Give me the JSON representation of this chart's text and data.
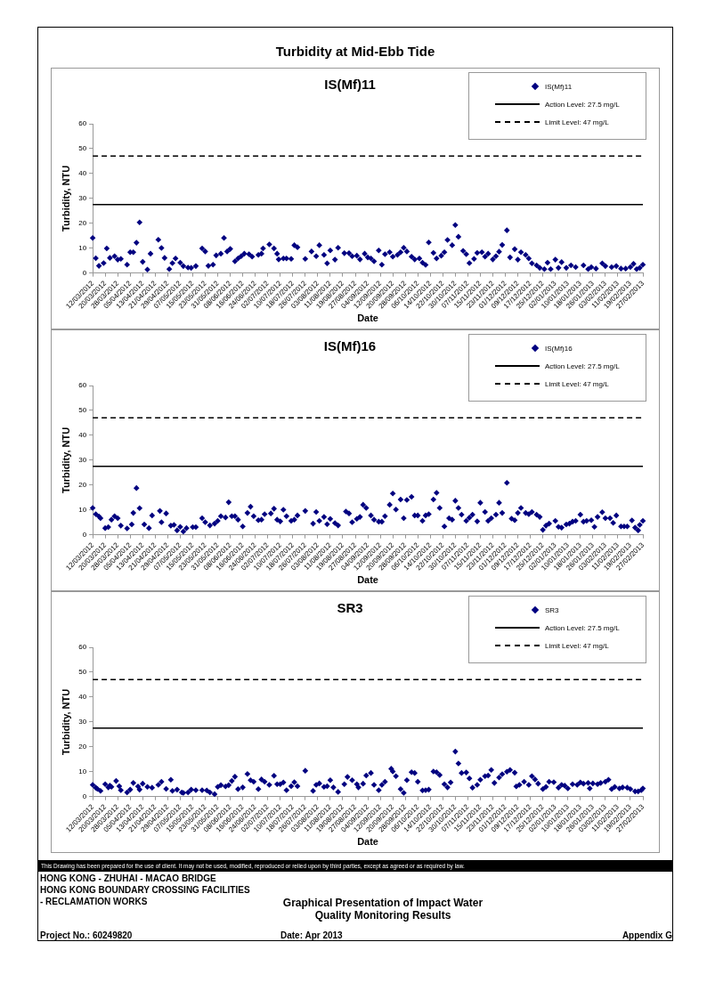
{
  "chart_data": [
    {
      "type": "other",
      "title": "Turbidity at Mid-Ebb Tide"
    },
    {
      "type": "scatter",
      "title": "IS(Mf)11",
      "xlabel": "Date",
      "ylabel": "Turbidity, NTU",
      "marker": "diamond",
      "legend": "top right",
      "xlim": [
        "2012-03-12",
        "2013-02-27"
      ],
      "ylim": [
        0,
        60
      ],
      "yticks": [
        0,
        10,
        20,
        30,
        40,
        50,
        60
      ],
      "xticks": [
        {
          "value": "2012-03-12",
          "label": "12/03/2012"
        },
        {
          "value": "2012-03-20",
          "label": "20/03/2012"
        },
        {
          "value": "2012-03-28",
          "label": "28/03/2012"
        },
        {
          "value": "2012-04-05",
          "label": "05/04/2012"
        },
        {
          "value": "2012-04-13",
          "label": "13/04/2012"
        },
        {
          "value": "2012-04-21",
          "label": "21/04/2012"
        },
        {
          "value": "2012-04-29",
          "label": "29/04/2012"
        },
        {
          "value": "2012-05-07",
          "label": "07/05/2012"
        },
        {
          "value": "2012-05-15",
          "label": "15/05/2012"
        },
        {
          "value": "2012-05-23",
          "label": "23/05/2012"
        },
        {
          "value": "2012-05-31",
          "label": "31/05/2012"
        },
        {
          "value": "2012-06-08",
          "label": "08/06/2012"
        },
        {
          "value": "2012-06-16",
          "label": "16/06/2012"
        },
        {
          "value": "2012-06-24",
          "label": "24/06/2012"
        },
        {
          "value": "2012-07-02",
          "label": "02/07/2012"
        },
        {
          "value": "2012-07-10",
          "label": "10/07/2012"
        },
        {
          "value": "2012-07-18",
          "label": "18/07/2012"
        },
        {
          "value": "2012-07-26",
          "label": "26/07/2012"
        },
        {
          "value": "2012-08-03",
          "label": "03/08/2012"
        },
        {
          "value": "2012-08-11",
          "label": "11/08/2012"
        },
        {
          "value": "2012-08-19",
          "label": "19/08/2012"
        },
        {
          "value": "2012-08-27",
          "label": "27/08/2012"
        },
        {
          "value": "2012-09-04",
          "label": "04/09/2012"
        },
        {
          "value": "2012-09-12",
          "label": "12/09/2012"
        },
        {
          "value": "2012-09-20",
          "label": "20/09/2012"
        },
        {
          "value": "2012-09-28",
          "label": "28/09/2012"
        },
        {
          "value": "2012-10-06",
          "label": "06/10/2012"
        },
        {
          "value": "2012-10-14",
          "label": "14/10/2012"
        },
        {
          "value": "2012-10-22",
          "label": "22/10/2012"
        },
        {
          "value": "2012-10-30",
          "label": "30/10/2012"
        },
        {
          "value": "2012-11-07",
          "label": "07/11/2012"
        },
        {
          "value": "2012-11-15",
          "label": "15/11/2012"
        },
        {
          "value": "2012-11-23",
          "label": "23/11/2012"
        },
        {
          "value": "2012-12-01",
          "label": "01/12/2012"
        },
        {
          "value": "2012-12-09",
          "label": "09/12/2012"
        },
        {
          "value": "2012-12-17",
          "label": "17/12/2012"
        },
        {
          "value": "2012-12-25",
          "label": "25/12/2012"
        },
        {
          "value": "2013-01-02",
          "label": "02/01/2013"
        },
        {
          "value": "2013-01-10",
          "label": "10/01/2013"
        },
        {
          "value": "2013-01-18",
          "label": "18/01/2013"
        },
        {
          "value": "2013-01-26",
          "label": "26/01/2013"
        },
        {
          "value": "2013-02-03",
          "label": "03/02/2013"
        },
        {
          "value": "2013-02-11",
          "label": "11/02/2013"
        },
        {
          "value": "2013-02-19",
          "label": "19/02/2013"
        },
        {
          "value": "2013-02-27",
          "label": "27/02/2013"
        }
      ],
      "ref_lines": [
        {
          "axis": "y",
          "value": 27.5,
          "label": "Action Level: 27.5 mg/L",
          "color": "#000000",
          "line_style": "solid"
        },
        {
          "axis": "y",
          "value": 47,
          "label": "Limit Level: 47 mg/L",
          "color": "#000000",
          "line_style": "dashed"
        }
      ],
      "series": [
        {
          "name": "IS(Mf)11",
          "color": "#000080",
          "x": [
            "2012-03-12",
            "2012-03-14",
            "2012-03-16",
            "2012-03-19",
            "2012-03-21",
            "2012-03-23",
            "2012-03-26",
            "2012-03-28",
            "2012-03-30",
            "2012-04-03",
            "2012-04-05",
            "2012-04-07",
            "2012-04-09",
            "2012-04-11",
            "2012-04-13",
            "2012-04-16",
            "2012-04-18",
            "2012-04-23",
            "2012-04-25",
            "2012-04-27",
            "2012-04-30",
            "2012-05-02",
            "2012-05-04",
            "2012-05-07",
            "2012-05-09",
            "2012-05-12",
            "2012-05-14",
            "2012-05-17",
            "2012-05-21",
            "2012-05-23",
            "2012-05-25",
            "2012-05-28",
            "2012-05-30",
            "2012-06-02",
            "2012-06-04",
            "2012-06-06",
            "2012-06-08",
            "2012-06-11",
            "2012-06-13",
            "2012-06-15",
            "2012-06-17",
            "2012-06-20",
            "2012-06-22",
            "2012-06-26",
            "2012-06-28",
            "2012-06-29",
            "2012-07-03",
            "2012-07-06",
            "2012-07-08",
            "2012-07-09",
            "2012-07-12",
            "2012-07-14",
            "2012-07-17",
            "2012-07-19",
            "2012-07-21",
            "2012-07-26",
            "2012-07-30",
            "2012-08-02",
            "2012-08-04",
            "2012-08-07",
            "2012-08-09",
            "2012-08-11",
            "2012-08-14",
            "2012-08-16",
            "2012-08-20",
            "2012-08-23",
            "2012-08-25",
            "2012-08-28",
            "2012-08-30",
            "2012-09-02",
            "2012-09-04",
            "2012-09-06",
            "2012-09-08",
            "2012-09-11",
            "2012-09-13",
            "2012-09-15",
            "2012-09-18",
            "2012-09-20",
            "2012-09-23",
            "2012-09-25",
            "2012-09-27",
            "2012-09-29",
            "2012-10-02",
            "2012-10-04",
            "2012-10-07",
            "2012-10-09",
            "2012-10-11",
            "2012-10-13",
            "2012-10-16",
            "2012-10-18",
            "2012-10-21",
            "2012-10-23",
            "2012-10-25",
            "2012-10-28",
            "2012-10-30",
            "2012-11-01",
            "2012-11-04",
            "2012-11-06",
            "2012-11-08",
            "2012-11-11",
            "2012-11-13",
            "2012-11-16",
            "2012-11-18",
            "2012-11-20",
            "2012-11-23",
            "2012-11-25",
            "2012-11-27",
            "2012-11-29",
            "2012-12-02",
            "2012-12-04",
            "2012-12-07",
            "2012-12-09",
            "2012-12-11",
            "2012-12-14",
            "2012-12-16",
            "2012-12-18",
            "2012-12-21",
            "2012-12-23",
            "2012-12-26",
            "2012-12-28",
            "2012-12-30",
            "2013-01-02",
            "2013-01-04",
            "2013-01-06",
            "2013-01-09",
            "2013-01-12",
            "2013-01-15",
            "2013-01-20",
            "2013-01-23",
            "2013-01-25",
            "2013-01-28",
            "2013-02-01",
            "2013-02-03",
            "2013-02-07",
            "2013-02-10",
            "2013-02-13",
            "2013-02-16",
            "2013-02-19",
            "2013-02-21",
            "2013-02-23",
            "2013-02-25",
            "2013-02-27"
          ],
          "values": [
            14.1,
            6.0,
            2.9,
            4.0,
            9.9,
            6.1,
            6.8,
            5.4,
            5.7,
            3.4,
            8.4,
            8.4,
            12.2,
            20.4,
            4.5,
            1.4,
            7.8,
            13.4,
            10.1,
            6.1,
            1.6,
            4.0,
            5.9,
            4.2,
            2.8,
            2.2,
            2.1,
            2.8,
            9.9,
            8.7,
            2.9,
            3.4,
            7.1,
            7.8,
            14.1,
            8.7,
            9.7,
            4.7,
            5.9,
            6.8,
            7.8,
            7.6,
            6.6,
            7.3,
            7.8,
            9.9,
            11.5,
            9.9,
            7.8,
            5.5,
            5.9,
            5.9,
            5.7,
            11.2,
            10.4,
            5.7,
            8.7,
            6.8,
            11.2,
            7.3,
            3.9,
            9.1,
            5.4,
            10.2,
            8.0,
            8.0,
            6.8,
            7.0,
            5.5,
            7.8,
            6.3,
            5.9,
            4.7,
            9.1,
            3.4,
            7.6,
            8.4,
            6.6,
            7.3,
            8.4,
            10.2,
            8.7,
            6.6,
            5.5,
            5.9,
            4.2,
            3.3,
            12.3,
            8.1,
            5.9,
            7.0,
            8.4,
            13.3,
            11.2,
            19.3,
            14.6,
            8.9,
            7.6,
            4.0,
            5.7,
            8.1,
            8.4,
            6.6,
            7.8,
            5.5,
            6.8,
            8.6,
            11.3,
            17.2,
            6.3,
            9.6,
            5.4,
            8.4,
            7.3,
            5.9,
            3.9,
            3.1,
            2.1,
            1.6,
            4.2,
            1.6,
            5.4,
            2.1,
            4.4,
            2.1,
            3.1,
            2.4,
            3.1,
            1.6,
            2.4,
            1.8,
            3.9,
            2.8,
            2.4,
            2.8,
            1.8,
            1.8,
            2.4,
            3.7,
            1.6,
            2.1,
            3.4
          ]
        }
      ]
    },
    {
      "type": "scatter",
      "title": "IS(Mf)16",
      "xlabel": "Date",
      "ylabel": "Turbidity, NTU",
      "marker": "diamond",
      "legend": "top right",
      "xlim": [
        "2012-03-12",
        "2013-02-27"
      ],
      "ylim": [
        0,
        60
      ],
      "yticks": [
        0,
        10,
        20,
        30,
        40,
        50,
        60
      ],
      "xticks": [
        {
          "value": "2012-03-12",
          "label": "12/03/2012"
        },
        {
          "value": "2012-03-20",
          "label": "20/03/2012"
        },
        {
          "value": "2012-03-28",
          "label": "28/03/2012"
        },
        {
          "value": "2012-04-05",
          "label": "05/04/2012"
        },
        {
          "value": "2012-04-13",
          "label": "13/04/2012"
        },
        {
          "value": "2012-04-21",
          "label": "21/04/2012"
        },
        {
          "value": "2012-04-29",
          "label": "29/04/2012"
        },
        {
          "value": "2012-05-07",
          "label": "07/05/2012"
        },
        {
          "value": "2012-05-15",
          "label": "15/05/2012"
        },
        {
          "value": "2012-05-23",
          "label": "23/05/2012"
        },
        {
          "value": "2012-05-31",
          "label": "31/05/2012"
        },
        {
          "value": "2012-06-08",
          "label": "08/06/2012"
        },
        {
          "value": "2012-06-16",
          "label": "16/06/2012"
        },
        {
          "value": "2012-06-24",
          "label": "24/06/2012"
        },
        {
          "value": "2012-07-02",
          "label": "02/07/2012"
        },
        {
          "value": "2012-07-10",
          "label": "10/07/2012"
        },
        {
          "value": "2012-07-18",
          "label": "18/07/2012"
        },
        {
          "value": "2012-07-26",
          "label": "26/07/2012"
        },
        {
          "value": "2012-08-03",
          "label": "03/08/2012"
        },
        {
          "value": "2012-08-11",
          "label": "11/08/2012"
        },
        {
          "value": "2012-08-19",
          "label": "19/08/2012"
        },
        {
          "value": "2012-08-27",
          "label": "27/08/2012"
        },
        {
          "value": "2012-09-04",
          "label": "04/09/2012"
        },
        {
          "value": "2012-09-12",
          "label": "12/09/2012"
        },
        {
          "value": "2012-09-20",
          "label": "20/09/2012"
        },
        {
          "value": "2012-09-28",
          "label": "28/09/2012"
        },
        {
          "value": "2012-10-06",
          "label": "06/10/2012"
        },
        {
          "value": "2012-10-14",
          "label": "14/10/2012"
        },
        {
          "value": "2012-10-22",
          "label": "22/10/2012"
        },
        {
          "value": "2012-10-30",
          "label": "30/10/2012"
        },
        {
          "value": "2012-11-07",
          "label": "07/11/2012"
        },
        {
          "value": "2012-11-15",
          "label": "15/11/2012"
        },
        {
          "value": "2012-11-23",
          "label": "23/11/2012"
        },
        {
          "value": "2012-12-01",
          "label": "01/12/2012"
        },
        {
          "value": "2012-12-09",
          "label": "09/12/2012"
        },
        {
          "value": "2012-12-17",
          "label": "17/12/2012"
        },
        {
          "value": "2012-12-25",
          "label": "25/12/2012"
        },
        {
          "value": "2013-01-02",
          "label": "02/01/2013"
        },
        {
          "value": "2013-01-10",
          "label": "10/01/2013"
        },
        {
          "value": "2013-01-18",
          "label": "18/01/2013"
        },
        {
          "value": "2013-01-26",
          "label": "26/01/2013"
        },
        {
          "value": "2013-02-03",
          "label": "03/02/2013"
        },
        {
          "value": "2013-02-11",
          "label": "11/02/2013"
        },
        {
          "value": "2013-02-19",
          "label": "19/02/2013"
        },
        {
          "value": "2013-02-27",
          "label": "27/02/2013"
        }
      ],
      "ref_lines": [
        {
          "axis": "y",
          "value": 27.5,
          "label": "Action Level: 27.5 mg/L",
          "color": "#000000",
          "line_style": "solid"
        },
        {
          "axis": "y",
          "value": 47,
          "label": "Limit Level: 47 mg/L",
          "color": "#000000",
          "line_style": "dashed"
        }
      ],
      "series": [
        {
          "name": "IS(Mf)16",
          "color": "#000080",
          "x": [
            "2012-03-12",
            "2012-03-14",
            "2012-03-16",
            "2012-03-17",
            "2012-03-20",
            "2012-03-22",
            "2012-03-24",
            "2012-03-26",
            "2012-03-28",
            "2012-03-30",
            "2012-04-03",
            "2012-04-06",
            "2012-04-07",
            "2012-04-09",
            "2012-04-11",
            "2012-04-14",
            "2012-04-17",
            "2012-04-19",
            "2012-04-24",
            "2012-04-25",
            "2012-04-28",
            "2012-05-01",
            "2012-05-03",
            "2012-05-05",
            "2012-05-07",
            "2012-05-09",
            "2012-05-11",
            "2012-05-15",
            "2012-05-17",
            "2012-05-21",
            "2012-05-23",
            "2012-05-26",
            "2012-05-29",
            "2012-05-31",
            "2012-06-02",
            "2012-06-05",
            "2012-06-07",
            "2012-06-09",
            "2012-06-11",
            "2012-06-13",
            "2012-06-16",
            "2012-06-19",
            "2012-06-21",
            "2012-06-23",
            "2012-06-26",
            "2012-06-28",
            "2012-06-30",
            "2012-07-04",
            "2012-07-06",
            "2012-07-08",
            "2012-07-10",
            "2012-07-12",
            "2012-07-14",
            "2012-07-17",
            "2012-07-19",
            "2012-07-21",
            "2012-07-26",
            "2012-07-31",
            "2012-08-02",
            "2012-08-04",
            "2012-08-07",
            "2012-08-09",
            "2012-08-11",
            "2012-08-14",
            "2012-08-16",
            "2012-08-21",
            "2012-08-23",
            "2012-08-25",
            "2012-08-28",
            "2012-08-30",
            "2012-09-01",
            "2012-09-03",
            "2012-09-06",
            "2012-09-08",
            "2012-09-11",
            "2012-09-13",
            "2012-09-15",
            "2012-09-18",
            "2012-09-20",
            "2012-09-22",
            "2012-09-25",
            "2012-09-27",
            "2012-09-29",
            "2012-10-02",
            "2012-10-04",
            "2012-10-06",
            "2012-10-09",
            "2012-10-11",
            "2012-10-13",
            "2012-10-16",
            "2012-10-18",
            "2012-10-20",
            "2012-10-23",
            "2012-10-26",
            "2012-10-28",
            "2012-10-30",
            "2012-11-01",
            "2012-11-03",
            "2012-11-06",
            "2012-11-08",
            "2012-11-10",
            "2012-11-13",
            "2012-11-15",
            "2012-11-18",
            "2012-11-20",
            "2012-11-22",
            "2012-11-25",
            "2012-11-27",
            "2012-11-29",
            "2012-12-02",
            "2012-12-05",
            "2012-12-07",
            "2012-12-09",
            "2012-12-11",
            "2012-12-14",
            "2012-12-16",
            "2012-12-18",
            "2012-12-21",
            "2012-12-23",
            "2012-12-25",
            "2012-12-27",
            "2012-12-29",
            "2013-01-02",
            "2013-01-04",
            "2013-01-06",
            "2013-01-09",
            "2013-01-11",
            "2013-01-13",
            "2013-01-15",
            "2013-01-18",
            "2013-01-20",
            "2013-01-22",
            "2013-01-25",
            "2013-01-27",
            "2013-01-29",
            "2013-02-01",
            "2013-02-03",
            "2013-02-06",
            "2013-02-08",
            "2013-02-10",
            "2013-02-13",
            "2013-02-15",
            "2013-02-17",
            "2013-02-20",
            "2013-02-22",
            "2013-02-24",
            "2013-02-25",
            "2013-02-27"
          ],
          "values": [
            10.8,
            8.3,
            7.4,
            6.7,
            2.7,
            3.1,
            6.1,
            7.5,
            6.7,
            3.7,
            2.6,
            4.2,
            8.8,
            18.8,
            10.7,
            4.2,
            2.7,
            7.8,
            9.6,
            5.1,
            8.6,
            3.7,
            4.0,
            1.8,
            3.2,
            1.3,
            2.7,
            3.1,
            3.1,
            6.7,
            5.1,
            3.8,
            4.5,
            5.6,
            7.5,
            7.0,
            13.1,
            7.5,
            7.5,
            6.1,
            3.4,
            8.8,
            11.3,
            7.5,
            5.9,
            6.1,
            8.3,
            8.6,
            10.5,
            6.1,
            5.4,
            10.1,
            7.5,
            5.6,
            6.1,
            7.8,
            9.6,
            4.5,
            9.2,
            5.6,
            7.2,
            4.3,
            6.4,
            4.7,
            3.8,
            9.4,
            8.6,
            5.1,
            6.4,
            7.2,
            12.1,
            10.8,
            7.8,
            6.1,
            5.3,
            5.3,
            7.5,
            12.1,
            16.6,
            10.2,
            14.2,
            6.7,
            14.0,
            15.3,
            7.8,
            7.8,
            5.6,
            7.8,
            8.3,
            14.2,
            16.9,
            10.8,
            3.4,
            6.7,
            6.1,
            13.7,
            10.8,
            8.1,
            5.6,
            6.9,
            8.1,
            5.4,
            12.9,
            9.2,
            5.6,
            6.7,
            8.1,
            12.9,
            8.8,
            20.9,
            6.5,
            5.9,
            8.8,
            10.8,
            8.8,
            8.3,
            9.2,
            8.1,
            7.2,
            2.0,
            3.7,
            4.5,
            5.6,
            3.2,
            2.9,
            4.2,
            4.5,
            5.3,
            5.6,
            8.1,
            5.3,
            5.6,
            5.9,
            3.2,
            7.2,
            9.1,
            6.7,
            6.7,
            4.8,
            7.8,
            3.4,
            3.4,
            3.4,
            5.8,
            2.9,
            1.8,
            4.0,
            5.6
          ]
        }
      ]
    },
    {
      "type": "scatter",
      "title": "SR3",
      "xlabel": "Date",
      "ylabel": "Turbidity, NTU",
      "marker": "diamond",
      "legend": "top right",
      "xlim": [
        "2012-03-12",
        "2013-02-27"
      ],
      "ylim": [
        0,
        60
      ],
      "yticks": [
        0,
        10,
        20,
        30,
        40,
        50,
        60
      ],
      "xticks": [
        {
          "value": "2012-03-12",
          "label": "12/03/2012"
        },
        {
          "value": "2012-03-20",
          "label": "20/03/2012"
        },
        {
          "value": "2012-03-28",
          "label": "28/03/2012"
        },
        {
          "value": "2012-04-05",
          "label": "05/04/2012"
        },
        {
          "value": "2012-04-13",
          "label": "13/04/2012"
        },
        {
          "value": "2012-04-21",
          "label": "21/04/2012"
        },
        {
          "value": "2012-04-29",
          "label": "29/04/2012"
        },
        {
          "value": "2012-05-07",
          "label": "07/05/2012"
        },
        {
          "value": "2012-05-15",
          "label": "15/05/2012"
        },
        {
          "value": "2012-05-23",
          "label": "23/05/2012"
        },
        {
          "value": "2012-05-31",
          "label": "31/05/2012"
        },
        {
          "value": "2012-06-08",
          "label": "08/06/2012"
        },
        {
          "value": "2012-06-16",
          "label": "16/06/2012"
        },
        {
          "value": "2012-06-24",
          "label": "24/06/2012"
        },
        {
          "value": "2012-07-02",
          "label": "02/07/2012"
        },
        {
          "value": "2012-07-10",
          "label": "10/07/2012"
        },
        {
          "value": "2012-07-18",
          "label": "18/07/2012"
        },
        {
          "value": "2012-07-26",
          "label": "26/07/2012"
        },
        {
          "value": "2012-08-03",
          "label": "03/08/2012"
        },
        {
          "value": "2012-08-11",
          "label": "11/08/2012"
        },
        {
          "value": "2012-08-19",
          "label": "19/08/2012"
        },
        {
          "value": "2012-08-27",
          "label": "27/08/2012"
        },
        {
          "value": "2012-09-04",
          "label": "04/09/2012"
        },
        {
          "value": "2012-09-12",
          "label": "12/09/2012"
        },
        {
          "value": "2012-09-20",
          "label": "20/09/2012"
        },
        {
          "value": "2012-09-28",
          "label": "28/09/2012"
        },
        {
          "value": "2012-10-06",
          "label": "06/10/2012"
        },
        {
          "value": "2012-10-14",
          "label": "14/10/2012"
        },
        {
          "value": "2012-10-22",
          "label": "22/10/2012"
        },
        {
          "value": "2012-10-30",
          "label": "30/10/2012"
        },
        {
          "value": "2012-11-07",
          "label": "07/11/2012"
        },
        {
          "value": "2012-11-15",
          "label": "15/11/2012"
        },
        {
          "value": "2012-11-23",
          "label": "23/11/2012"
        },
        {
          "value": "2012-12-01",
          "label": "01/12/2012"
        },
        {
          "value": "2012-12-09",
          "label": "09/12/2012"
        },
        {
          "value": "2012-12-17",
          "label": "17/12/2012"
        },
        {
          "value": "2012-12-25",
          "label": "25/12/2012"
        },
        {
          "value": "2013-01-02",
          "label": "02/01/2013"
        },
        {
          "value": "2013-01-10",
          "label": "10/01/2013"
        },
        {
          "value": "2013-01-18",
          "label": "18/01/2013"
        },
        {
          "value": "2013-01-26",
          "label": "26/01/2013"
        },
        {
          "value": "2013-02-03",
          "label": "03/02/2013"
        },
        {
          "value": "2013-02-11",
          "label": "11/02/2013"
        },
        {
          "value": "2013-02-19",
          "label": "19/02/2013"
        },
        {
          "value": "2013-02-27",
          "label": "27/02/2013"
        }
      ],
      "ref_lines": [
        {
          "axis": "y",
          "value": 27.5,
          "label": "Action Level: 27.5 mg/L",
          "color": "#000000",
          "line_style": "solid"
        },
        {
          "axis": "y",
          "value": 47,
          "label": "Limit Level: 47 mg/L",
          "color": "#000000",
          "line_style": "dashed"
        }
      ],
      "series": [
        {
          "name": "SR3",
          "color": "#000080",
          "x": [
            "2012-03-12",
            "2012-03-14",
            "2012-03-15",
            "2012-03-17",
            "2012-03-20",
            "2012-03-22",
            "2012-03-23",
            "2012-03-24",
            "2012-03-27",
            "2012-03-29",
            "2012-03-30",
            "2012-04-03",
            "2012-04-05",
            "2012-04-07",
            "2012-04-10",
            "2012-04-11",
            "2012-04-13",
            "2012-04-16",
            "2012-04-19",
            "2012-04-23",
            "2012-04-25",
            "2012-04-28",
            "2012-05-01",
            "2012-05-02",
            "2012-05-05",
            "2012-05-08",
            "2012-05-09",
            "2012-05-12",
            "2012-05-14",
            "2012-05-17",
            "2012-05-21",
            "2012-05-24",
            "2012-05-26",
            "2012-05-29",
            "2012-05-31",
            "2012-06-02",
            "2012-06-05",
            "2012-06-07",
            "2012-06-09",
            "2012-06-11",
            "2012-06-13",
            "2012-06-16",
            "2012-06-19",
            "2012-06-21",
            "2012-06-23",
            "2012-06-26",
            "2012-06-28",
            "2012-06-30",
            "2012-07-03",
            "2012-07-06",
            "2012-07-08",
            "2012-07-10",
            "2012-07-12",
            "2012-07-14",
            "2012-07-17",
            "2012-07-19",
            "2012-07-21",
            "2012-07-26",
            "2012-07-31",
            "2012-08-02",
            "2012-08-04",
            "2012-08-07",
            "2012-08-09",
            "2012-08-11",
            "2012-08-13",
            "2012-08-16",
            "2012-08-20",
            "2012-08-22",
            "2012-08-25",
            "2012-08-28",
            "2012-08-29",
            "2012-09-01",
            "2012-09-03",
            "2012-09-06",
            "2012-09-08",
            "2012-09-11",
            "2012-09-13",
            "2012-09-15",
            "2012-09-19",
            "2012-09-20",
            "2012-09-22",
            "2012-09-25",
            "2012-09-27",
            "2012-09-29",
            "2012-10-02",
            "2012-10-04",
            "2012-10-06",
            "2012-10-09",
            "2012-10-11",
            "2012-10-13",
            "2012-10-16",
            "2012-10-18",
            "2012-10-20",
            "2012-10-23",
            "2012-10-25",
            "2012-10-27",
            "2012-10-30",
            "2012-11-01",
            "2012-11-03",
            "2012-11-06",
            "2012-11-08",
            "2012-11-10",
            "2012-11-13",
            "2012-11-15",
            "2012-11-18",
            "2012-11-20",
            "2012-11-22",
            "2012-11-24",
            "2012-11-27",
            "2012-11-29",
            "2012-12-02",
            "2012-12-04",
            "2012-12-07",
            "2012-12-08",
            "2012-12-10",
            "2012-12-13",
            "2012-12-16",
            "2012-12-18",
            "2012-12-20",
            "2012-12-22",
            "2012-12-25",
            "2012-12-27",
            "2012-12-29",
            "2013-01-01",
            "2013-01-04",
            "2013-01-06",
            "2013-01-08",
            "2013-01-10",
            "2013-01-13",
            "2013-01-16",
            "2013-01-18",
            "2013-01-20",
            "2013-01-23",
            "2013-01-24",
            "2013-01-26",
            "2013-01-29",
            "2013-01-31",
            "2013-02-03",
            "2013-02-05",
            "2013-02-07",
            "2013-02-09",
            "2013-02-12",
            "2013-02-14",
            "2013-02-17",
            "2013-02-19",
            "2013-02-22",
            "2013-02-24",
            "2013-02-26",
            "2013-02-27"
          ],
          "values": [
            4.7,
            3.6,
            3.1,
            2.3,
            5.0,
            3.7,
            4.4,
            3.9,
            6.3,
            4.2,
            2.6,
            1.7,
            2.8,
            5.5,
            4.1,
            2.8,
            5.2,
            3.9,
            3.6,
            4.7,
            6.0,
            3.1,
            6.8,
            2.3,
            2.8,
            1.7,
            1.5,
            1.7,
            2.8,
            2.6,
            2.6,
            2.5,
            1.7,
            1.0,
            3.9,
            4.6,
            4.1,
            4.6,
            6.3,
            8.0,
            3.0,
            3.7,
            9.1,
            6.6,
            6.0,
            3.0,
            6.9,
            6.0,
            4.7,
            8.4,
            5.0,
            5.0,
            5.7,
            2.6,
            4.2,
            5.8,
            4.2,
            10.4,
            2.3,
            4.7,
            5.3,
            3.9,
            4.2,
            6.6,
            3.7,
            1.9,
            5.0,
            7.9,
            6.6,
            5.0,
            3.7,
            5.2,
            8.5,
            9.5,
            4.7,
            2.6,
            4.7,
            6.0,
            11.2,
            10.1,
            8.2,
            3.0,
            1.5,
            6.6,
            9.8,
            9.5,
            6.0,
            2.5,
            2.6,
            2.8,
            10.1,
            9.8,
            8.7,
            5.0,
            3.7,
            5.7,
            18.1,
            13.3,
            9.5,
            9.7,
            7.3,
            3.6,
            4.7,
            6.8,
            8.2,
            8.5,
            10.7,
            5.5,
            7.7,
            9.0,
            10.0,
            10.7,
            9.6,
            4.1,
            4.7,
            6.0,
            4.7,
            8.2,
            6.9,
            5.2,
            3.0,
            3.9,
            6.0,
            5.8,
            3.6,
            4.7,
            4.4,
            3.3,
            5.0,
            4.7,
            5.7,
            5.2,
            5.5,
            3.3,
            5.3,
            5.0,
            5.5,
            6.0,
            6.8,
            3.0,
            3.9,
            3.3,
            3.7,
            3.6,
            3.0,
            2.1,
            2.1,
            2.6,
            3.3
          ]
        }
      ]
    },
    {
      "type": "other",
      "annotations": [
        "This Drawing has been prepared for the use of client. It may not be used, modified, reproduced or relied upon by third parties, except as agreed or as required by law.",
        "HONG KONG - ZHUHAI - MACAO BRIDGE",
        "HONG KONG BOUNDARY CROSSING FACILITIES",
        "- RECLAMATION WORKS",
        "Graphical Presentation of Impact Water Quality Monitoring Results",
        "Project No.: 60249820",
        "Date: Apr 2013",
        "Appendix G"
      ]
    }
  ]
}
